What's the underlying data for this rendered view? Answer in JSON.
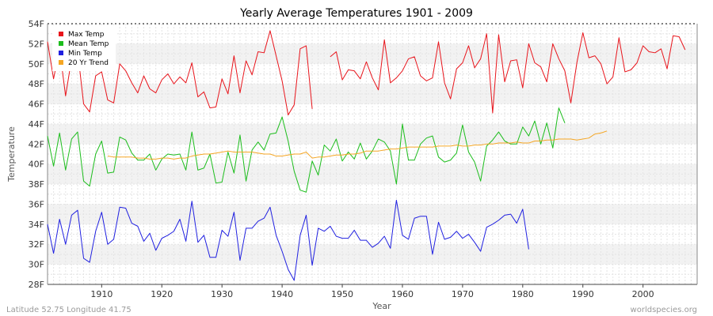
{
  "chart_data": {
    "type": "line",
    "title": "Yearly Average Temperatures 1901 - 2009",
    "xlabel": "Year",
    "ylabel": "Temperature",
    "xlim": [
      1901,
      2009
    ],
    "ylim": [
      28,
      54
    ],
    "x_ticks": [
      1910,
      1920,
      1930,
      1940,
      1950,
      1960,
      1970,
      1980,
      1990,
      2000
    ],
    "y_ticks": [
      {
        "value": 28,
        "label": "28F"
      },
      {
        "value": 30,
        "label": "30F"
      },
      {
        "value": 32,
        "label": "32F"
      },
      {
        "value": 34,
        "label": "34F"
      },
      {
        "value": 36,
        "label": "36F"
      },
      {
        "value": 38,
        "label": "38F"
      },
      {
        "value": 40,
        "label": "40F"
      },
      {
        "value": 42,
        "label": "42F"
      },
      {
        "value": 44,
        "label": "44F"
      },
      {
        "value": 46,
        "label": "46F"
      },
      {
        "value": 48,
        "label": "48F"
      },
      {
        "value": 50,
        "label": "50F"
      },
      {
        "value": 52,
        "label": "52F"
      },
      {
        "value": 54,
        "label": "54F"
      }
    ],
    "grid": true,
    "legend_position": "top-left",
    "series": [
      {
        "name": "Max Temp",
        "color": "#e8141b",
        "segments": [
          {
            "start": 1901,
            "values": [
              52.2,
              48.5,
              51.5,
              46.8,
              50.5,
              51.3,
              46.0,
              45.2,
              48.8,
              49.2,
              46.4,
              46.1,
              50.0,
              49.3,
              48.1,
              47.1,
              48.8,
              47.5,
              47.1,
              48.4,
              49.0,
              48.0,
              48.7,
              48.1,
              50.1,
              46.7,
              47.2,
              45.6,
              45.7,
              48.5,
              47.0,
              50.8,
              47.1,
              50.3,
              48.9,
              51.2,
              51.1,
              53.3,
              50.8,
              48.3,
              44.9,
              45.9,
              51.5,
              51.8,
              45.5
            ]
          },
          {
            "start": 1948,
            "values": [
              50.7,
              51.2,
              48.4,
              49.4,
              49.3,
              48.5,
              50.2,
              48.6,
              47.4,
              52.4,
              48.1,
              48.6,
              49.3,
              50.5,
              50.7,
              48.8,
              48.3,
              48.6,
              52.2,
              48.1,
              46.5,
              49.5,
              50.1,
              51.8,
              49.6,
              50.5,
              53.0,
              45.1,
              52.9,
              48.2,
              50.3,
              50.4,
              47.6,
              52.0,
              50.1,
              49.7,
              48.2,
              52.0,
              50.5,
              49.3,
              46.1,
              50.1,
              53.1,
              50.6,
              50.8,
              50.0,
              48.0,
              48.7,
              52.6,
              49.2,
              49.4,
              50.1,
              51.8,
              51.2,
              51.1,
              51.5,
              49.5,
              52.8,
              52.7,
              51.4
            ]
          }
        ]
      },
      {
        "name": "Mean Temp",
        "color": "#1cbd1c",
        "segments": [
          {
            "start": 1901,
            "values": [
              42.8,
              39.8,
              43.1,
              39.4,
              42.5,
              43.2,
              38.3,
              37.8,
              41.0,
              42.3,
              39.1,
              39.2,
              42.7,
              42.4,
              41.1,
              40.4,
              40.4,
              41.0,
              39.4,
              40.5,
              41.0,
              40.9,
              41.0,
              39.4,
              43.2,
              39.4,
              39.6,
              41.0,
              38.1,
              38.2,
              41.2,
              39.1,
              42.9,
              38.3,
              41.4,
              42.2,
              41.4,
              43.0,
              43.1,
              44.7,
              42.3,
              39.3,
              37.4,
              37.2,
              40.3,
              38.9,
              41.9,
              41.3,
              42.5,
              40.3,
              41.2,
              40.5,
              42.1,
              40.5,
              41.3,
              42.5,
              42.2,
              41.3,
              38.0,
              44.0,
              40.4,
              40.4,
              42.0,
              42.6,
              42.8,
              40.7,
              40.2,
              40.4,
              41.1,
              43.9,
              41.2,
              40.2,
              38.3,
              41.8,
              42.4,
              43.2,
              42.3,
              42.0,
              42.0,
              43.7,
              42.8,
              44.3,
              42.0,
              44.1,
              41.6,
              45.6,
              44.1
            ]
          }
        ]
      },
      {
        "name": "Min Temp",
        "color": "#2020e0",
        "segments": [
          {
            "start": 1901,
            "values": [
              34.0,
              31.1,
              34.5,
              32.0,
              34.9,
              35.4,
              30.6,
              30.2,
              33.3,
              35.2,
              32.0,
              32.5,
              35.7,
              35.6,
              34.1,
              33.8,
              32.3,
              33.1,
              31.4,
              32.6,
              32.9,
              33.3,
              34.5,
              32.3,
              36.3,
              32.2,
              32.9,
              30.7,
              30.7,
              33.4,
              32.8,
              35.2,
              30.4,
              33.6,
              33.6,
              34.3,
              34.6,
              35.7,
              32.9,
              31.3,
              29.5,
              28.4,
              32.9,
              34.9,
              29.9,
              33.6,
              33.3,
              33.8,
              32.8,
              32.6,
              32.6,
              33.4,
              32.4,
              32.4,
              31.7,
              32.1,
              32.8,
              31.6,
              36.4,
              32.9,
              32.5,
              34.6,
              34.8,
              34.8,
              31.0,
              34.2,
              32.5,
              32.7,
              33.3,
              32.6,
              33.0,
              32.2,
              31.3,
              33.7,
              34.0,
              34.4,
              34.9,
              35.0,
              34.1,
              35.5,
              31.5
            ]
          }
        ]
      },
      {
        "name": "20 Yr Trend",
        "color": "#f5a623",
        "segments": [
          {
            "start": 1911,
            "values": [
              40.8,
              40.7,
              40.7,
              40.7,
              40.7,
              40.6,
              40.6,
              40.5,
              40.5,
              40.6,
              40.6,
              40.5,
              40.6,
              40.6,
              40.8,
              40.9,
              41.0,
              41.0,
              41.1,
              41.2,
              41.3,
              41.2,
              41.2,
              41.2,
              41.2,
              41.1,
              41.0,
              41.0,
              40.8,
              40.8,
              40.9,
              41.0,
              41.0,
              41.2,
              40.6,
              40.7,
              40.7,
              40.8,
              40.9,
              40.9,
              41.0,
              41.0,
              41.1,
              41.3,
              41.3,
              41.3,
              41.4,
              41.5,
              41.5,
              41.6,
              41.7,
              41.7,
              41.7,
              41.7,
              41.7,
              41.8,
              41.8,
              41.8,
              41.9,
              41.8,
              41.8,
              41.9,
              41.9,
              42.0,
              42.0,
              42.1,
              42.1,
              42.1,
              42.2,
              42.1,
              42.1,
              42.3,
              42.3,
              42.4,
              42.4,
              42.5,
              42.5,
              42.5,
              42.4,
              42.5,
              42.6,
              43.0,
              43.1,
              43.3
            ]
          }
        ]
      }
    ]
  },
  "footer": {
    "left": "Latitude 52.75 Longitude 41.75",
    "right": "worldspecies.org"
  }
}
